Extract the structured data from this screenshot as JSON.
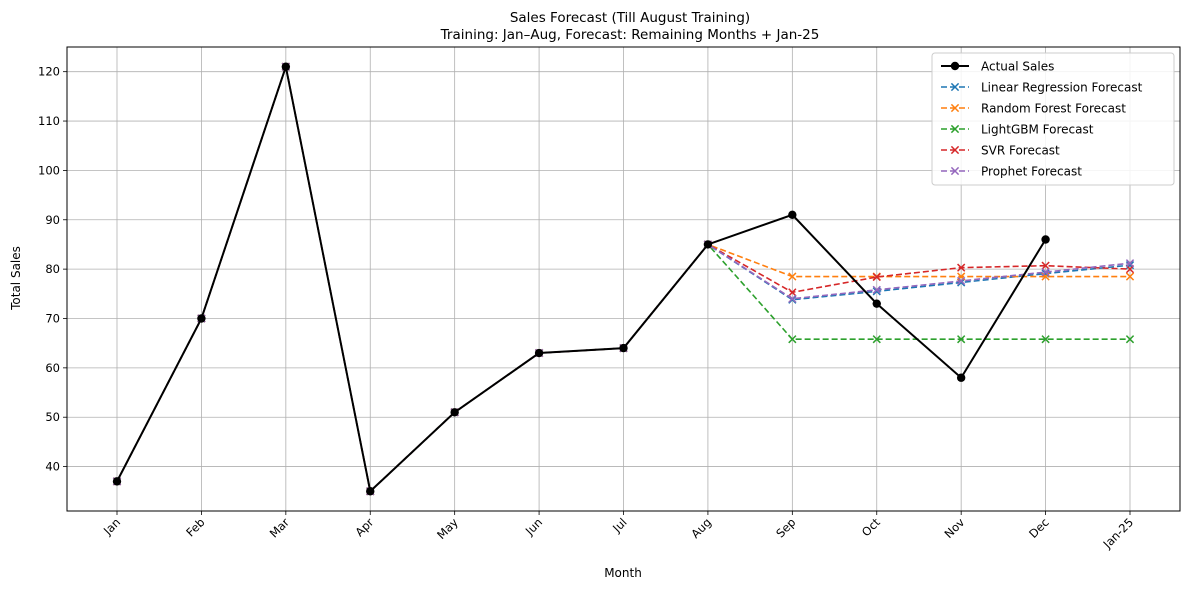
{
  "chart_data": {
    "type": "line",
    "title": "Sales Forecast (Till August Training)",
    "subtitle": "Training: Jan–Aug, Forecast: Remaining Months + Jan-25",
    "xlabel": "Month",
    "ylabel": "Total Sales",
    "categories": [
      "Jan",
      "Feb",
      "Mar",
      "Apr",
      "May",
      "Jun",
      "Jul",
      "Aug",
      "Sep",
      "Oct",
      "Nov",
      "Dec",
      "Jan-25"
    ],
    "ylim": [
      31,
      125
    ],
    "yticks": [
      40,
      50,
      60,
      70,
      80,
      90,
      100,
      110,
      120
    ],
    "grid": true,
    "legend_position": "top-right",
    "series": [
      {
        "name": "Actual Sales",
        "color": "#000000",
        "style": "solid",
        "marker": "circle",
        "values": [
          37,
          70,
          121,
          35,
          51,
          63,
          64,
          85,
          91,
          73,
          58,
          86,
          null
        ]
      },
      {
        "name": "Linear Regression Forecast",
        "color": "#1f77b4",
        "style": "dashed",
        "marker": "x",
        "values": [
          37,
          70,
          121,
          35,
          51,
          63,
          64,
          85,
          73.8,
          75.5,
          77.3,
          79.1,
          80.8
        ]
      },
      {
        "name": "Random Forest Forecast",
        "color": "#ff7f0e",
        "style": "dashed",
        "marker": "x",
        "values": [
          37,
          70,
          121,
          35,
          51,
          63,
          64,
          85,
          78.5,
          78.5,
          78.5,
          78.5,
          78.5
        ]
      },
      {
        "name": "LightGBM Forecast",
        "color": "#2ca02c",
        "style": "dashed",
        "marker": "x",
        "values": [
          37,
          70,
          121,
          35,
          51,
          63,
          64,
          85,
          65.8,
          65.8,
          65.8,
          65.8,
          65.8
        ]
      },
      {
        "name": "SVR Forecast",
        "color": "#d62728",
        "style": "dashed",
        "marker": "x",
        "values": [
          37,
          70,
          121,
          35,
          51,
          63,
          64,
          85,
          75.3,
          78.4,
          80.3,
          80.7,
          80.0
        ]
      },
      {
        "name": "Prophet Forecast",
        "color": "#9467bd",
        "style": "dashed",
        "marker": "x",
        "values": [
          37,
          70,
          121,
          35,
          51,
          63,
          64,
          85,
          74.0,
          75.8,
          77.6,
          79.4,
          81.2
        ]
      }
    ]
  }
}
